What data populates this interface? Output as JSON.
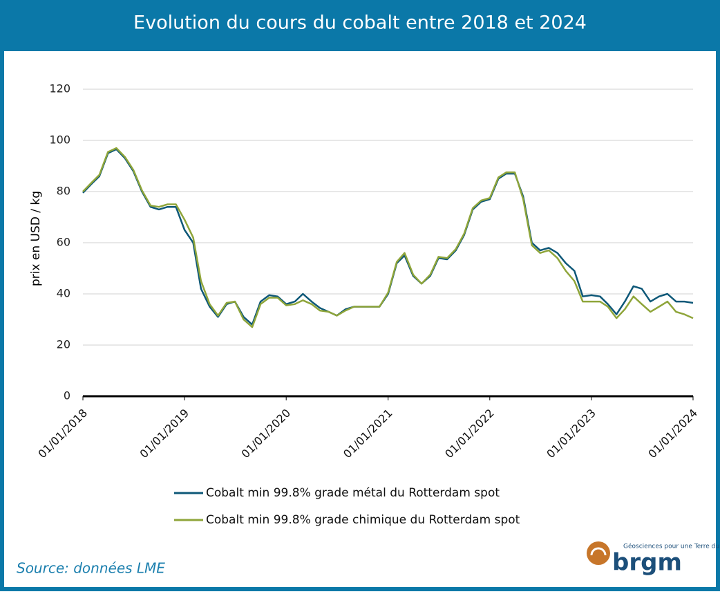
{
  "chart_data": {
    "type": "line",
    "title": "Evolution du cours du cobalt entre 2018 et 2024",
    "y_label": "prix en USD / kg",
    "x": [
      "2018-01-01",
      "2018-02-01",
      "2018-03-01",
      "2018-04-01",
      "2018-05-01",
      "2018-06-01",
      "2018-07-01",
      "2018-08-01",
      "2018-09-01",
      "2018-10-01",
      "2018-11-01",
      "2018-12-01",
      "2019-01-01",
      "2019-02-01",
      "2019-03-01",
      "2019-04-01",
      "2019-05-01",
      "2019-06-01",
      "2019-07-01",
      "2019-08-01",
      "2019-09-01",
      "2019-10-01",
      "2019-11-01",
      "2019-12-01",
      "2020-01-01",
      "2020-02-01",
      "2020-03-01",
      "2020-04-01",
      "2020-05-01",
      "2020-06-01",
      "2020-07-01",
      "2020-08-01",
      "2020-09-01",
      "2020-10-01",
      "2020-11-01",
      "2020-12-01",
      "2021-01-01",
      "2021-02-01",
      "2021-03-01",
      "2021-04-01",
      "2021-05-01",
      "2021-06-01",
      "2021-07-01",
      "2021-08-01",
      "2021-09-01",
      "2021-10-01",
      "2021-11-01",
      "2021-12-01",
      "2022-01-01",
      "2022-02-01",
      "2022-03-01",
      "2022-04-01",
      "2022-05-01",
      "2022-06-01",
      "2022-07-01",
      "2022-08-01",
      "2022-09-01",
      "2022-10-01",
      "2022-11-01",
      "2022-12-01",
      "2023-01-01",
      "2023-02-01",
      "2023-03-01",
      "2023-04-01",
      "2023-05-01",
      "2023-06-01",
      "2023-07-01",
      "2023-08-01",
      "2023-09-01",
      "2023-10-01",
      "2023-11-01",
      "2023-12-01",
      "2024-01-01"
    ],
    "series": [
      {
        "name": "Cobalt min 99.8% grade métal du Rotterdam spot",
        "color": "#0e5878",
        "values": [
          79.5,
          83,
          86,
          95,
          96.5,
          93,
          88,
          80,
          74,
          73,
          74,
          74,
          65,
          60,
          42,
          35,
          31,
          36,
          37,
          31,
          28,
          37,
          39.5,
          39,
          36,
          37,
          40,
          37,
          34.5,
          33,
          31.5,
          34,
          35,
          35,
          35,
          35,
          40,
          52,
          55,
          47,
          44,
          47,
          54,
          53.5,
          57,
          63,
          73,
          76,
          77,
          85,
          87,
          87,
          78,
          60,
          57,
          58,
          56,
          52,
          49,
          39,
          39.5,
          39,
          36,
          32,
          37,
          43,
          42,
          37,
          39,
          40,
          37,
          37,
          36.5
        ]
      },
      {
        "name": "Cobalt min 99.8% grade chimique du Rotterdam spot",
        "color": "#8fa53a",
        "values": [
          80,
          83.5,
          86.5,
          95.5,
          97,
          93.5,
          88.5,
          80.5,
          74.5,
          74,
          75,
          75,
          69,
          62,
          45,
          36,
          31.5,
          36.5,
          37,
          30,
          27,
          36,
          38.5,
          38.5,
          35.5,
          36,
          37.5,
          36,
          33.5,
          33,
          31.5,
          33.5,
          35,
          35,
          35,
          35,
          40.5,
          52.5,
          56,
          47.5,
          44,
          47.5,
          54.5,
          54,
          57.5,
          63.5,
          73.5,
          76.5,
          77.5,
          85.5,
          87.5,
          87.5,
          77,
          59,
          56,
          57,
          54,
          49,
          45,
          37,
          37,
          37,
          35,
          30.5,
          34,
          39,
          36,
          33,
          35,
          37,
          33,
          32,
          30.5
        ]
      }
    ],
    "xlim": [
      "2018-01-01",
      "2024-01-01"
    ],
    "xticks": [
      {
        "value": "2018-01-01",
        "label": "01/01/2018"
      },
      {
        "value": "2019-01-01",
        "label": "01/01/2019"
      },
      {
        "value": "2020-01-01",
        "label": "01/01/2020"
      },
      {
        "value": "2021-01-01",
        "label": "01/01/2021"
      },
      {
        "value": "2022-01-01",
        "label": "01/01/2022"
      },
      {
        "value": "2023-01-01",
        "label": "01/01/2023"
      },
      {
        "value": "2024-01-01",
        "label": "01/01/2024"
      }
    ],
    "ylim": [
      0,
      120
    ],
    "yticks": [
      0,
      20,
      40,
      60,
      80,
      100,
      120
    ],
    "grid": true
  },
  "source": "Source: données LME",
  "logo": {
    "name": "brgm",
    "tagline": "Géosciences pour une Terre durable"
  }
}
